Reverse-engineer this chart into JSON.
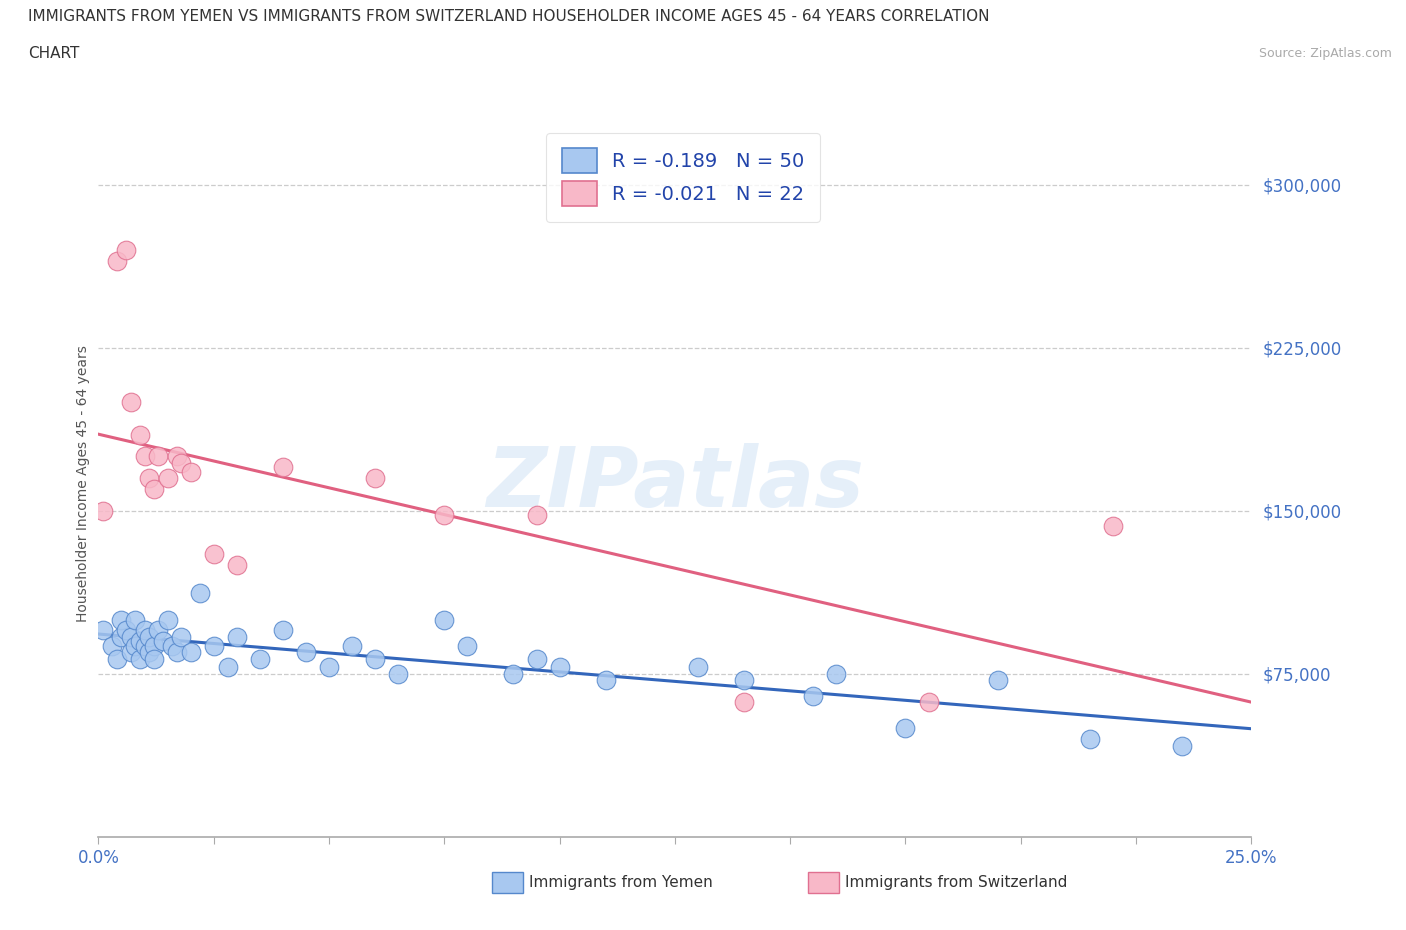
{
  "title_line1": "IMMIGRANTS FROM YEMEN VS IMMIGRANTS FROM SWITZERLAND HOUSEHOLDER INCOME AGES 45 - 64 YEARS CORRELATION",
  "title_line2": "CHART",
  "source": "Source: ZipAtlas.com",
  "ylabel": "Householder Income Ages 45 - 64 years",
  "xlim": [
    0.0,
    0.25
  ],
  "ylim": [
    0,
    325000
  ],
  "yticks": [
    0,
    75000,
    150000,
    225000,
    300000
  ],
  "ytick_labels": [
    "",
    "$75,000",
    "$150,000",
    "$225,000",
    "$300,000"
  ],
  "xticks": [
    0.0,
    0.025,
    0.05,
    0.075,
    0.1,
    0.125,
    0.15,
    0.175,
    0.2,
    0.225,
    0.25
  ],
  "xtick_labels": [
    "0.0%",
    "",
    "",
    "",
    "",
    "",
    "",
    "",
    "",
    "",
    "25.0%"
  ],
  "r_yemen": -0.189,
  "n_yemen": 50,
  "r_switzerland": -0.021,
  "n_switzerland": 22,
  "yemen_color": "#a8c8f0",
  "switzerland_color": "#f8b8c8",
  "yemen_edge_color": "#5588cc",
  "switzerland_edge_color": "#e07090",
  "yemen_line_color": "#3366bb",
  "switzerland_line_color": "#e06080",
  "watermark": "ZIPatlas",
  "yemen_x": [
    0.001,
    0.003,
    0.004,
    0.005,
    0.005,
    0.006,
    0.007,
    0.007,
    0.008,
    0.008,
    0.009,
    0.009,
    0.01,
    0.01,
    0.011,
    0.011,
    0.012,
    0.012,
    0.013,
    0.014,
    0.015,
    0.016,
    0.017,
    0.018,
    0.02,
    0.022,
    0.025,
    0.028,
    0.03,
    0.035,
    0.04,
    0.045,
    0.05,
    0.055,
    0.06,
    0.065,
    0.075,
    0.08,
    0.09,
    0.095,
    0.1,
    0.11,
    0.13,
    0.14,
    0.155,
    0.16,
    0.175,
    0.195,
    0.215,
    0.235
  ],
  "yemen_y": [
    95000,
    88000,
    82000,
    92000,
    100000,
    95000,
    85000,
    92000,
    88000,
    100000,
    90000,
    82000,
    88000,
    95000,
    85000,
    92000,
    88000,
    82000,
    95000,
    90000,
    100000,
    88000,
    85000,
    92000,
    85000,
    112000,
    88000,
    78000,
    92000,
    82000,
    95000,
    85000,
    78000,
    88000,
    82000,
    75000,
    100000,
    88000,
    75000,
    82000,
    78000,
    72000,
    78000,
    72000,
    65000,
    75000,
    50000,
    72000,
    45000,
    42000
  ],
  "switzerland_x": [
    0.001,
    0.004,
    0.006,
    0.007,
    0.009,
    0.01,
    0.011,
    0.012,
    0.013,
    0.015,
    0.017,
    0.018,
    0.02,
    0.025,
    0.03,
    0.04,
    0.06,
    0.075,
    0.095,
    0.14,
    0.18,
    0.22
  ],
  "switzerland_y": [
    150000,
    265000,
    270000,
    200000,
    185000,
    175000,
    165000,
    160000,
    175000,
    165000,
    175000,
    172000,
    168000,
    130000,
    125000,
    170000,
    165000,
    148000,
    148000,
    62000,
    62000,
    143000
  ]
}
